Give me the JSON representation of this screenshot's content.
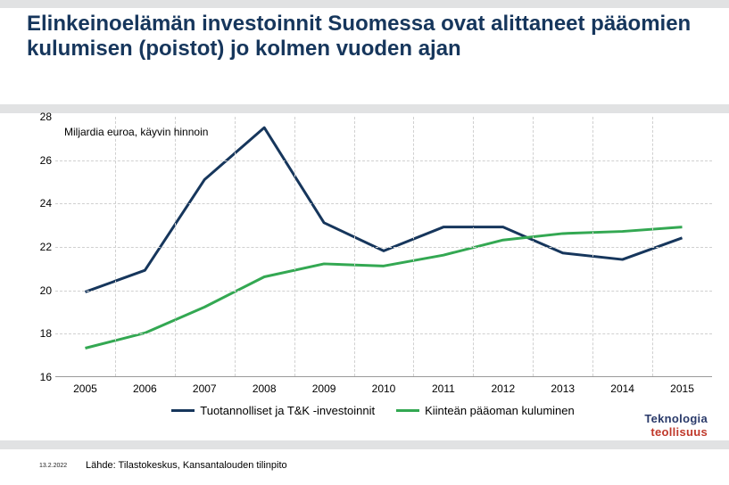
{
  "title": {
    "text": "Elinkeinoelämän investoinnit Suomessa ovat alittaneet pääomien kulumisen (poistot) jo kolmen vuoden ajan",
    "fontsize": 24,
    "color": "#16365c"
  },
  "chart": {
    "type": "line",
    "subtitle": "Miljardia euroa, käyvin hinnoin",
    "ylim": [
      16,
      28
    ],
    "ytick_step": 2,
    "xlim": [
      2004.5,
      2015.5
    ],
    "xticks": [
      2005,
      2006,
      2007,
      2008,
      2009,
      2010,
      2011,
      2012,
      2013,
      2014,
      2015
    ],
    "series": [
      {
        "name": "Tuotannolliset ja T&K -investoinnit",
        "color": "#16365c",
        "line_width": 3,
        "values": [
          19.9,
          20.9,
          25.1,
          27.5,
          23.1,
          21.8,
          22.9,
          22.9,
          21.7,
          21.4,
          22.4
        ]
      },
      {
        "name": "Kiinteän pääoman kuluminen",
        "color": "#33a852",
        "line_width": 3,
        "values": [
          17.3,
          18.0,
          19.2,
          20.6,
          21.2,
          21.1,
          21.6,
          22.3,
          22.6,
          22.7,
          22.9
        ]
      }
    ],
    "background_color": "#ffffff",
    "grid_color": "#d0d0d0",
    "axis_label_fontsize": 12
  },
  "footer": {
    "date": "13.2.2022",
    "source": "Lähde: Tilastokeskus, Kansantalouden tilinpito"
  },
  "brand": {
    "line1": "Teknologia",
    "line2": "teollisuus",
    "color1": "#2a3a6a",
    "color2": "#c0392b"
  }
}
